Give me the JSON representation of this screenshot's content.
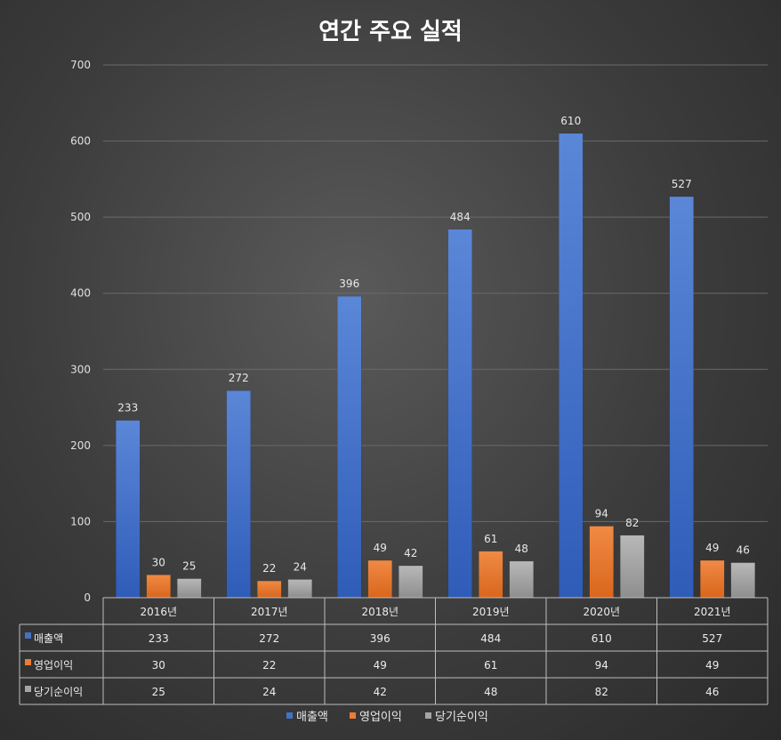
{
  "chart_data": {
    "type": "bar",
    "title": "연간 주요 실적",
    "categories": [
      "2016년",
      "2017년",
      "2018년",
      "2019년",
      "2020년",
      "2021년"
    ],
    "series": [
      {
        "name": "매출액",
        "color": "#4472C4",
        "values": [
          233,
          272,
          396,
          484,
          610,
          527
        ]
      },
      {
        "name": "영업이익",
        "color": "#ED7D31",
        "values": [
          30,
          22,
          49,
          61,
          94,
          49
        ]
      },
      {
        "name": "당기순이익",
        "color": "#A5A5A5",
        "values": [
          25,
          24,
          42,
          48,
          82,
          46
        ]
      }
    ],
    "ylim": [
      0,
      700
    ],
    "yticks": [
      0,
      100,
      200,
      300,
      400,
      500,
      600,
      700
    ],
    "grid": true,
    "data_table": true,
    "legend": "bottom"
  }
}
